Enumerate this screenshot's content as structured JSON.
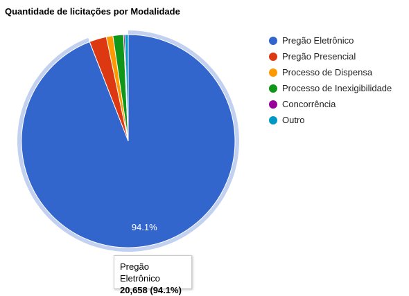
{
  "chart_data": {
    "type": "pie",
    "title": "Quantidade de licitações por Modalidade",
    "slices": [
      {
        "label": "Pregão Eletrônico",
        "value": 20658,
        "percent": 94.1,
        "color": "#3366cc"
      },
      {
        "label": "Pregão Presencial",
        "percent": 2.6,
        "color": "#dc3912"
      },
      {
        "label": "Processo de Dispensa",
        "percent": 1.0,
        "color": "#ff9900"
      },
      {
        "label": "Processo de Inexigibilidade",
        "percent": 1.6,
        "color": "#109618"
      },
      {
        "label": "Concorrência",
        "percent": 0.2,
        "color": "#990099"
      },
      {
        "label": "Outro",
        "percent": 0.5,
        "color": "#0099c6"
      }
    ],
    "slice_labels": [
      "94.1%"
    ],
    "highlighted_slice": "Pregão Eletrônico",
    "legend_position": "right"
  },
  "tooltip": {
    "label": "Pregão Eletrônico",
    "value": "20,658 (94.1%)"
  }
}
